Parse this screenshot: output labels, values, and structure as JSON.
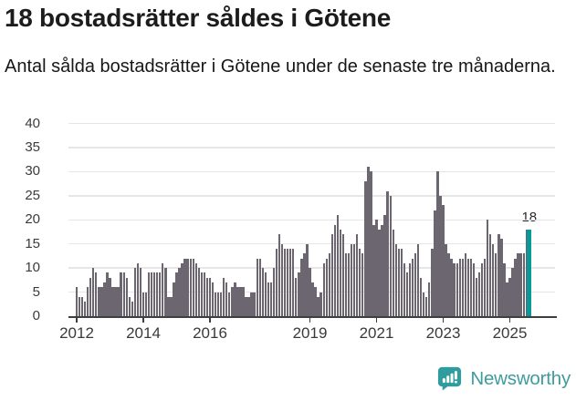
{
  "header": {
    "title": "18 bostadsrätter såldes i Götene",
    "subtitle": "Antal sålda bostadsrätter i Götene under de senaste tre månaderna."
  },
  "chart_data": {
    "type": "bar",
    "title": "18 bostadsrätter såldes i Götene",
    "xlabel": "",
    "ylabel": "",
    "ylim": [
      0,
      40
    ],
    "yticks": [
      0,
      5,
      10,
      15,
      20,
      25,
      30,
      35,
      40
    ],
    "x_tick_labels": [
      "2012",
      "2014",
      "2016",
      "2019",
      "2021",
      "2023",
      "2025"
    ],
    "grid": "horizontal",
    "legend": "none",
    "start_month": "2012-01",
    "end_month": "2025-08",
    "series": [
      {
        "name": "Antal sålda bostadsrätter (rullande tre månader)",
        "values": [
          6,
          4,
          4,
          3,
          6,
          8,
          10,
          9,
          6,
          6,
          7,
          9,
          8,
          6,
          6,
          6,
          9,
          9,
          8,
          4,
          3,
          10,
          11,
          10,
          5,
          5,
          9,
          9,
          9,
          9,
          9,
          11,
          10,
          4,
          4,
          7,
          9,
          10,
          11,
          12,
          12,
          12,
          12,
          11,
          10,
          9,
          9,
          8,
          8,
          7,
          5,
          5,
          5,
          8,
          7,
          5,
          6,
          7,
          6,
          6,
          6,
          4,
          4,
          5,
          5,
          12,
          12,
          10,
          9,
          7,
          7,
          10,
          14,
          17,
          15,
          14,
          14,
          14,
          14,
          8,
          9,
          12,
          13,
          15,
          10,
          7,
          6,
          4,
          5,
          11,
          12,
          13,
          17,
          19,
          21,
          18,
          17,
          13,
          13,
          15,
          15,
          17,
          14,
          13,
          28,
          31,
          30,
          19,
          20,
          18,
          19,
          21,
          26,
          25,
          18,
          15,
          14,
          14,
          11,
          9,
          11,
          12,
          13,
          15,
          8,
          5,
          4,
          7,
          14,
          22,
          30,
          25,
          23,
          15,
          13,
          12,
          11,
          11,
          12,
          12,
          13,
          12,
          12,
          11,
          8,
          9,
          11,
          12,
          20,
          17,
          15,
          13,
          17,
          16,
          11,
          7,
          8,
          10,
          12,
          13,
          13,
          13,
          18,
          18
        ]
      }
    ],
    "highlight": {
      "index": 163,
      "value": 18,
      "label": "18"
    }
  },
  "colors": {
    "bar": "#6b6670",
    "highlight": "#089a9a",
    "grid": "#e6e6e6",
    "axis": "#3f3f3f",
    "tick_text": "#3a3a3a",
    "logo": "#3f9c9e"
  },
  "logo": {
    "text": "Newsworthy"
  }
}
